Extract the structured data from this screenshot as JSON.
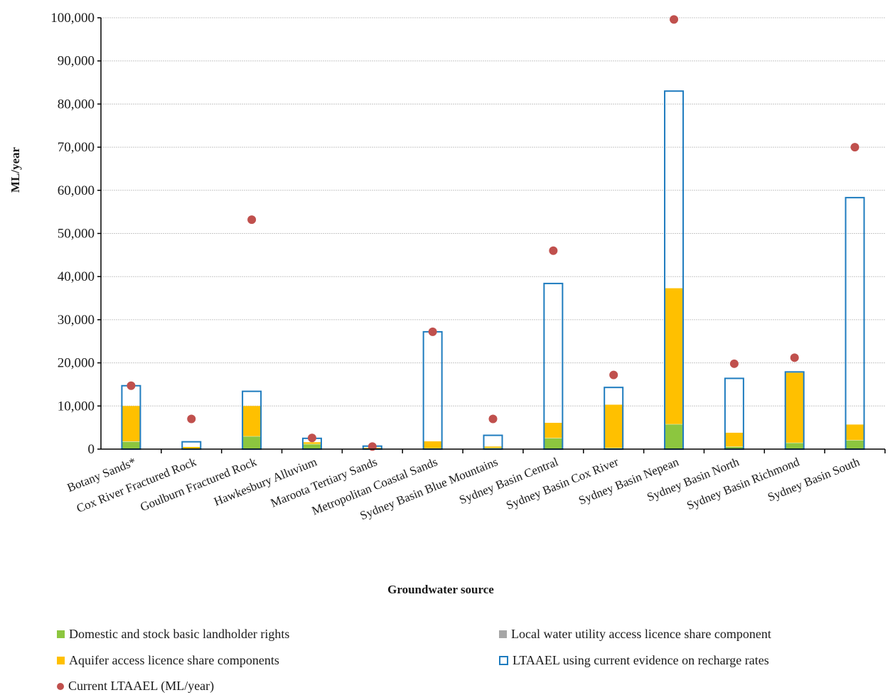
{
  "chart_data": {
    "type": "bar",
    "title": "",
    "xlabel": "Groundwater source",
    "ylabel": "ML/year",
    "ylim": [
      0,
      100000
    ],
    "yticks": [
      "0",
      "10,000",
      "20,000",
      "30,000",
      "40,000",
      "50,000",
      "60,000",
      "70,000",
      "80,000",
      "90,000",
      "100,000"
    ],
    "grid": true,
    "legend_position": "bottom",
    "categories": [
      "Botany Sands*",
      "Cox River Fractured Rock",
      "Goulburn Fractured Rock",
      "Hawkesbury Alluvium",
      "Maroota Tertiary Sands",
      "Metropolitan Coastal Sands",
      "Sydney Basin Blue Mountains",
      "Sydney Basin Central",
      "Sydney Basin Cox River",
      "Sydney Basin Nepean",
      "Sydney Basin North",
      "Sydney Basin Richmond",
      "Sydney Basin South"
    ],
    "series": [
      {
        "name": "Domestic and stock basic landholder rights",
        "kind": "stacked-bar",
        "color": "#8cc63f",
        "values": [
          1800,
          100,
          3000,
          1200,
          100,
          200,
          300,
          2600,
          300,
          5800,
          600,
          1500,
          2100
        ]
      },
      {
        "name": "Local water utility access licence share component",
        "kind": "stacked-bar",
        "color": "#a6a6a6",
        "values": [
          0,
          0,
          0,
          0,
          0,
          0,
          0,
          0,
          0,
          0,
          0,
          0,
          0
        ]
      },
      {
        "name": "Aquifer access licence share components",
        "kind": "stacked-bar",
        "color": "#ffc000",
        "values": [
          8200,
          400,
          7000,
          400,
          200,
          1600,
          300,
          3500,
          10000,
          31500,
          3200,
          16200,
          3600
        ]
      },
      {
        "name": "LTAAEL using current evidence on recharge rates",
        "kind": "outline-bar",
        "color": "#1f7cbf",
        "values": [
          14700,
          1700,
          13400,
          2500,
          700,
          27200,
          3200,
          38400,
          14300,
          83000,
          16400,
          17900,
          58300
        ]
      },
      {
        "name": "Current LTAAEL (ML/year)",
        "kind": "dot",
        "color": "#c0504d",
        "values": [
          14700,
          7000,
          53200,
          2600,
          600,
          27200,
          7000,
          46000,
          17200,
          99600,
          19800,
          21200,
          70000
        ]
      }
    ]
  }
}
